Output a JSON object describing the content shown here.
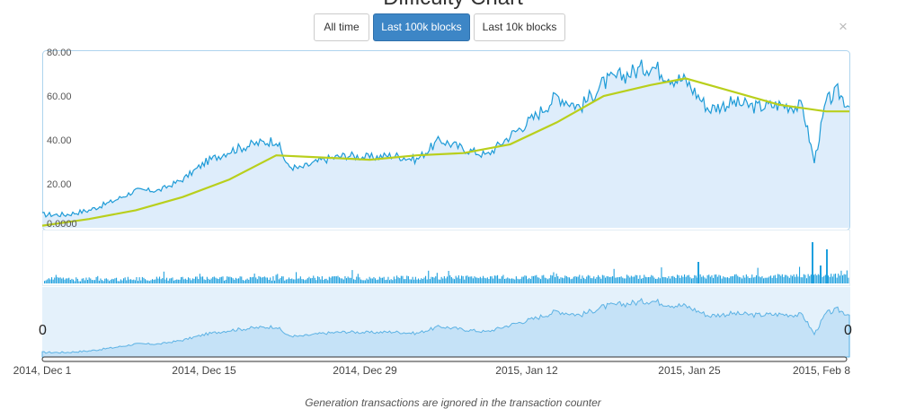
{
  "title": "Difficulty Chart",
  "buttons": [
    {
      "label": "All time",
      "active": false
    },
    {
      "label": "Last 100k blocks",
      "active": true
    },
    {
      "label": "Last 10k blocks",
      "active": false
    }
  ],
  "close_symbol": "×",
  "colors": {
    "area_fill": "#deedfb",
    "line": "#1e9bd7",
    "moving_average": "#b9cf1c",
    "volume": "#1ea0de",
    "navigator_fill": "#c5e2f7"
  },
  "chart_data": {
    "type": "area",
    "x_tick_labels": [
      "2014, Dec 1",
      "2014, Dec 15",
      "2014, Dec 29",
      "2015, Jan 12",
      "2015, Jan 25",
      "2015, Feb 8"
    ],
    "y_tick_labels": [
      "0.0000",
      "20.00",
      "40.00",
      "60.00",
      "80.00"
    ],
    "ylim": [
      0,
      80
    ],
    "grid": false,
    "navigator_labels": [
      "0",
      "0"
    ],
    "series": [
      {
        "name": "",
        "type": "area",
        "x": [
          "2014-12-01",
          "2014-12-03",
          "2014-12-05",
          "2014-12-07",
          "2014-12-09",
          "2014-12-11",
          "2014-12-13",
          "2014-12-15",
          "2014-12-17",
          "2014-12-19",
          "2014-12-21",
          "2014-12-22",
          "2014-12-23",
          "2014-12-25",
          "2014-12-27",
          "2014-12-29",
          "2014-12-31",
          "2015-01-02",
          "2015-01-04",
          "2015-01-06",
          "2015-01-08",
          "2015-01-10",
          "2015-01-12",
          "2015-01-14",
          "2015-01-16",
          "2015-01-18",
          "2015-01-20",
          "2015-01-22",
          "2015-01-24",
          "2015-01-25",
          "2015-01-27",
          "2015-01-29",
          "2015-01-31",
          "2015-02-02",
          "2015-02-04",
          "2015-02-05",
          "2015-02-06",
          "2015-02-07",
          "2015-02-08"
        ],
        "values": [
          6,
          6,
          8,
          12,
          17,
          17,
          22,
          30,
          35,
          38,
          40,
          28,
          27,
          31,
          33,
          32,
          33,
          31,
          40,
          36,
          33,
          42,
          50,
          60,
          55,
          66,
          70,
          74,
          68,
          67,
          54,
          57,
          55,
          56,
          55,
          30,
          57,
          62,
          55
        ]
      },
      {
        "name": "",
        "type": "line",
        "x": [
          "2014-12-01",
          "2014-12-05",
          "2014-12-09",
          "2014-12-13",
          "2014-12-17",
          "2014-12-21",
          "2014-12-25",
          "2014-12-29",
          "2015-01-02",
          "2015-01-06",
          "2015-01-10",
          "2015-01-14",
          "2015-01-18",
          "2015-01-22",
          "2015-01-25",
          "2015-01-29",
          "2015-02-02",
          "2015-02-06",
          "2015-02-08"
        ],
        "values": [
          1,
          4,
          8,
          14,
          22,
          33,
          32,
          31,
          33,
          34,
          38,
          48,
          60,
          65,
          68,
          62,
          56,
          53,
          53
        ]
      }
    ]
  }
}
